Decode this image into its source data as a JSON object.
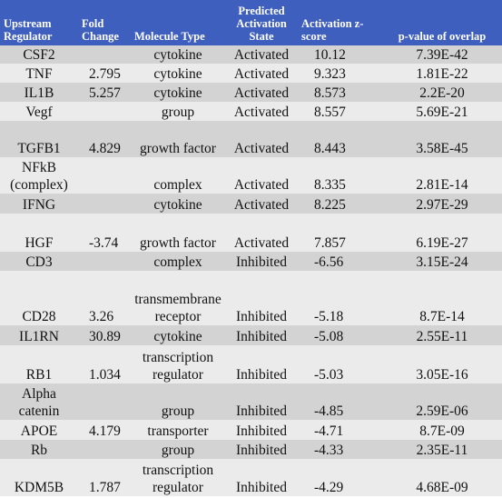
{
  "table": {
    "headers": [
      "Upstream Regulator",
      "Fold Change",
      "Molecule Type",
      "Predicted Activation State",
      "Activation z-score",
      "p-value of overlap"
    ],
    "rows": [
      {
        "regulator": "CSF2",
        "fold": "",
        "type": "cytokine",
        "state": "Activated",
        "z": "10.12",
        "p": "7.39E-42"
      },
      {
        "regulator": "TNF",
        "fold": "2.795",
        "type": "cytokine",
        "state": "Activated",
        "z": "9.323",
        "p": "1.81E-22"
      },
      {
        "regulator": "IL1B",
        "fold": "5.257",
        "type": "cytokine",
        "state": "Activated",
        "z": "8.573",
        "p": "2.2E-20"
      },
      {
        "regulator": "Vegf",
        "fold": "",
        "type": "group",
        "state": "Activated",
        "z": "8.557",
        "p": "5.69E-21"
      },
      {
        "regulator": "TGFB1",
        "fold": "4.829",
        "type": "growth factor",
        "state": "Activated",
        "z": "8.443",
        "p": "3.58E-45"
      },
      {
        "regulator": "NFkB (complex)",
        "fold": "",
        "type": "complex",
        "state": "Activated",
        "z": "8.335",
        "p": "2.81E-14"
      },
      {
        "regulator": "IFNG",
        "fold": "",
        "type": "cytokine",
        "state": "Activated",
        "z": "8.225",
        "p": "2.97E-29"
      },
      {
        "regulator": "HGF",
        "fold": "-3.74",
        "type": "growth factor",
        "state": "Activated",
        "z": "7.857",
        "p": "6.19E-27"
      },
      {
        "regulator": "CD3",
        "fold": "",
        "type": "complex",
        "state": "Inhibited",
        "z": "-6.56",
        "p": "3.15E-24"
      },
      {
        "regulator": "CD28",
        "fold": "3.26",
        "type": "transmembrane receptor",
        "state": "Inhibited",
        "z": "-5.18",
        "p": "8.7E-14"
      },
      {
        "regulator": "IL1RN",
        "fold": "30.89",
        "type": "cytokine",
        "state": "Inhibited",
        "z": "-5.08",
        "p": "2.55E-11"
      },
      {
        "regulator": "RB1",
        "fold": "1.034",
        "type": "transcription regulator",
        "state": "Inhibited",
        "z": "-5.03",
        "p": "3.05E-16"
      },
      {
        "regulator": "Alpha catenin",
        "fold": "",
        "type": "group",
        "state": "Inhibited",
        "z": "-4.85",
        "p": "2.59E-06"
      },
      {
        "regulator": "APOE",
        "fold": "4.179",
        "type": "transporter",
        "state": "Inhibited",
        "z": "-4.71",
        "p": "8.7E-09"
      },
      {
        "regulator": "Rb",
        "fold": "",
        "type": "group",
        "state": "Inhibited",
        "z": "-4.33",
        "p": "2.35E-11"
      },
      {
        "regulator": "KDM5B",
        "fold": "1.787",
        "type": "transcription regulator",
        "state": "Inhibited",
        "z": "-4.29",
        "p": "4.68E-09"
      }
    ]
  },
  "colors": {
    "header_bg": "#3f5fbf",
    "header_text": "#ffffff",
    "row_dark": "#d3d3d3",
    "row_light": "#ebebeb"
  }
}
